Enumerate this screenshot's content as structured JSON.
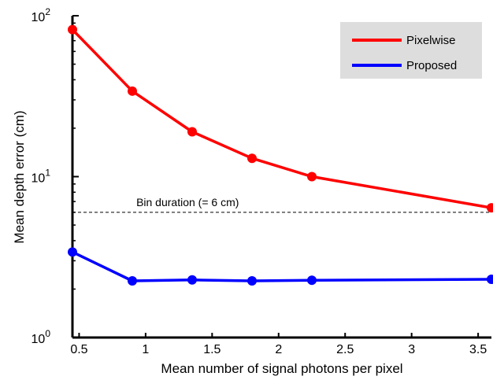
{
  "chart_data": {
    "type": "line",
    "title": "",
    "xlabel": "Mean number of signal photons per pixel",
    "ylabel": "Mean depth error (cm)",
    "xlim": [
      0.45,
      3.6
    ],
    "ylim": [
      1,
      100
    ],
    "yscale": "log",
    "x_ticks": [
      0.5,
      1,
      1.5,
      2,
      2.5,
      3,
      3.5
    ],
    "x_tick_labels": [
      "0.5",
      "1",
      "1.5",
      "2",
      "2.5",
      "3",
      "3.5"
    ],
    "y_ticks": [
      {
        "value": 1,
        "base": "10",
        "exp": "0"
      },
      {
        "value": 10,
        "base": "10",
        "exp": "1"
      },
      {
        "value": 100,
        "base": "10",
        "exp": "2"
      }
    ],
    "x": [
      0.45,
      0.9,
      1.35,
      1.8,
      2.25,
      3.6
    ],
    "series": [
      {
        "name": "Pixelwise",
        "color": "#ff0000",
        "values": [
          82,
          34,
          19,
          13,
          10,
          6.4
        ]
      },
      {
        "name": "Proposed",
        "color": "#0000ff",
        "values": [
          3.4,
          2.25,
          2.28,
          2.25,
          2.27,
          2.3
        ]
      }
    ],
    "reference_line": {
      "value": 6,
      "label": "Bin duration (= 6 cm)",
      "style": "dashed"
    },
    "legend_placement": "top-right",
    "grid": false
  }
}
